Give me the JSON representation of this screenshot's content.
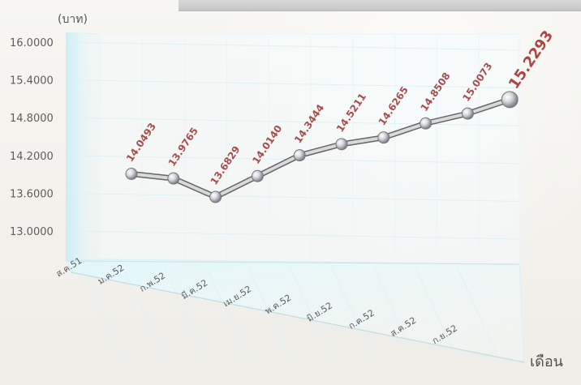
{
  "chart_data": {
    "type": "line",
    "title": "",
    "xlabel": "เดือน",
    "ylabel": "(บาท)",
    "categories": [
      "ส.ค.51",
      "ม.ค.52",
      "ก.พ.52",
      "มี.ค.52",
      "เม.ย.52",
      "พ.ค.52",
      "มิ.ย.52",
      "ก.ค.52",
      "ส.ค.52",
      "ก.ย.52"
    ],
    "values": [
      14.0493,
      13.9765,
      13.6829,
      14.014,
      14.3444,
      14.5211,
      14.6265,
      14.8508,
      15.0073,
      15.2293
    ],
    "y_ticks": [
      "13.0000",
      "13.6000",
      "14.2000",
      "14.8000",
      "15.4000",
      "16.0000"
    ],
    "ylim": [
      13.0,
      16.0
    ],
    "grid": true,
    "series": [
      {
        "values": [
          14.0493,
          13.9765,
          13.6829,
          14.014,
          14.3444,
          14.5211,
          14.6265,
          14.8508,
          15.0073,
          15.2293
        ],
        "labels": [
          "14.0493",
          "13.9765",
          "13.6829",
          "14.0140",
          "14.3444",
          "14.5211",
          "14.6265",
          "14.8508",
          "15.0073",
          "15.2293"
        ]
      }
    ],
    "colors": {
      "line": "#b7b7b7",
      "line_outline": "#666666",
      "marker": "#cfcfd7",
      "label": "#a84d4d",
      "grid": "#dff0f7",
      "wall": "#c9eef8"
    }
  }
}
